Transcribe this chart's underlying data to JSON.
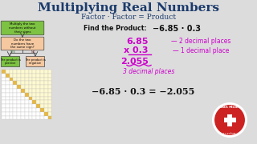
{
  "bg_color": "#dcdcdc",
  "title": "Multiplying Real Numbers",
  "title_color": "#1a3a6b",
  "subtitle": "Factor · Factor = Product",
  "subtitle_color": "#1a3a6b",
  "find_product_text": "Find the Product:",
  "problem": "−6.85 · 0.3",
  "problem_color": "#1a1a1a",
  "line1_num": "6.85",
  "line1_arrow": "— 2 decimal places",
  "line2_num": "x 0.3",
  "line2_arrow": "— 1 decimal place",
  "line3_num": "2.055",
  "line3_label": "3 decimal places",
  "answer": "−6.85 · 0.3 = −2.055",
  "magenta": "#cc00cc",
  "dark_text": "#111111",
  "flowchart_green": "#7dc242",
  "flowchart_peach": "#f5c8a0",
  "logo_red": "#cc2222",
  "table_gold": "#e8b840",
  "table_lightyellow": "#fef9d0"
}
